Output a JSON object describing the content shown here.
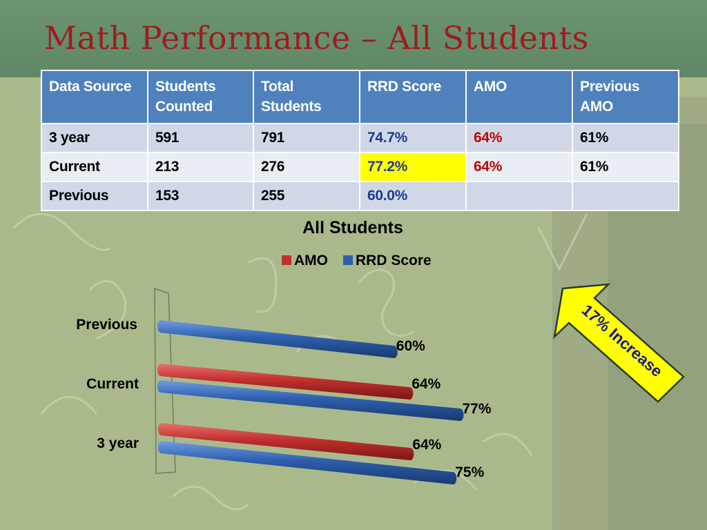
{
  "slide": {
    "title": "Math Performance – All Students"
  },
  "table": {
    "headers": [
      "Data Source",
      "Students Counted",
      "Total Students",
      "RRD Score",
      "AMO",
      "Previous AMO"
    ],
    "rows": [
      [
        "3 year",
        "591",
        "791",
        "74.7%",
        "64%",
        "61%"
      ],
      [
        "Current",
        "213",
        "276",
        "77.2%",
        "64%",
        "61%"
      ],
      [
        "Previous",
        "153",
        "255",
        "60.0%",
        "",
        ""
      ]
    ]
  },
  "callout": {
    "text": "17% Increase",
    "color": "#ffff00"
  },
  "colors": {
    "amo": "#c0302e",
    "rrd": "#2e5fae",
    "header": "#4f81bd",
    "highlight": "#ffff00",
    "title": "#9e1c1c"
  },
  "chart_data": {
    "type": "bar",
    "orientation": "horizontal",
    "title": "All Students",
    "categories": [
      "Previous",
      "Current",
      "3 year"
    ],
    "series": [
      {
        "name": "AMO",
        "values": [
          null,
          64,
          64
        ],
        "labels": [
          "",
          "64%",
          "64%"
        ],
        "color": "#c0302e"
      },
      {
        "name": "RRD Score",
        "values": [
          60,
          77,
          75
        ],
        "labels": [
          "60%",
          "77%",
          "75%"
        ],
        "color": "#2e5fae"
      }
    ],
    "legend_position": "top",
    "grid": false,
    "xlim": [
      0,
      100
    ]
  }
}
